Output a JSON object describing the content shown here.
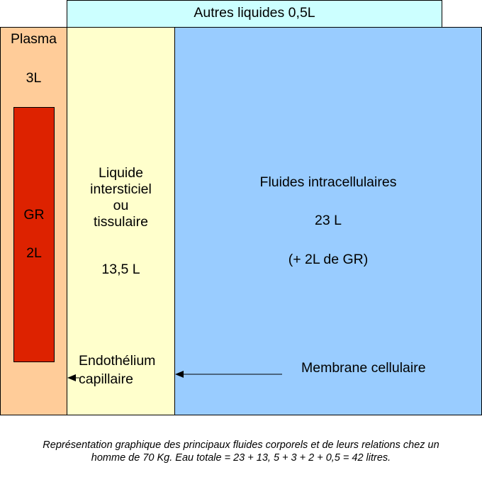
{
  "top": {
    "label": "Autres liquides 0,5L"
  },
  "plasma": {
    "label": "Plasma",
    "volume": "3L"
  },
  "gr": {
    "label": "GR",
    "volume": "2L"
  },
  "interstitial": {
    "lines": [
      "Liquide",
      "intersticiel",
      "ou",
      "tissulaire"
    ],
    "volume": "13,5 L"
  },
  "intracellular": {
    "label": "Fluides intracellulaires",
    "volume": "23 L",
    "note": "(+ 2L de GR)"
  },
  "endothelium": {
    "line1": "Endothélium",
    "line2": "capillaire"
  },
  "membrane": {
    "label": "Membrane cellulaire"
  },
  "caption": {
    "line1": "Représentation graphique des principaux fluides corporels et de leurs relations chez un",
    "line2": "homme de 70 Kg. Eau totale = 23 + 13, 5 + 3 + 2 + 0,5 = 42 litres."
  },
  "colors": {
    "other_liquids": "#ccffff",
    "plasma": "#ffcc99",
    "red_cells": "#dd2200",
    "interstitial": "#ffffcc",
    "intracellular": "#99ccff"
  }
}
